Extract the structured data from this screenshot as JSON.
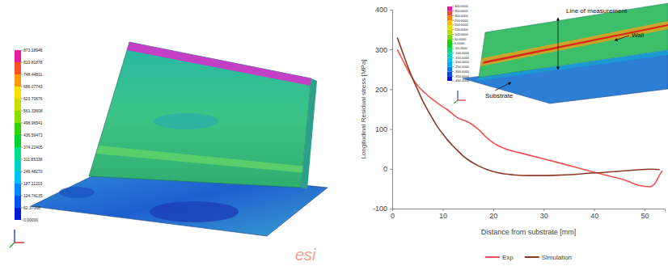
{
  "chart_data": {
    "type": "line",
    "x_label": "Distance from substrate [mm]",
    "y_label": "Longitudinal Residual stress [MPa]",
    "xlim": [
      0,
      54
    ],
    "ylim": [
      -100,
      400
    ],
    "xticks": [
      0,
      10,
      20,
      30,
      40,
      50
    ],
    "yticks": [
      -100,
      0,
      100,
      200,
      300,
      400
    ],
    "grid": false,
    "legend": "bottom",
    "series": [
      {
        "name": "Exp",
        "color": "#f0524f",
        "x": [
          1,
          2,
          3,
          4,
          5,
          7,
          9,
          11,
          13,
          15,
          17,
          19,
          21,
          23,
          26,
          30,
          34,
          38,
          42,
          46,
          49,
          51,
          52,
          53,
          53.5
        ],
        "values": [
          300,
          275,
          250,
          228,
          210,
          185,
          165,
          148,
          128,
          118,
          100,
          75,
          58,
          48,
          38,
          25,
          12,
          -2,
          -15,
          -28,
          -42,
          -45,
          -38,
          -15,
          -5
        ]
      },
      {
        "name": "Simulation",
        "color": "#8b3a26",
        "x": [
          1,
          2,
          3,
          4,
          5,
          6,
          7,
          8,
          9,
          10,
          11,
          12,
          13,
          14,
          15,
          17,
          19,
          21,
          24,
          27,
          30,
          33,
          36,
          39,
          42,
          45,
          48,
          51,
          53
        ],
        "values": [
          330,
          295,
          260,
          228,
          200,
          172,
          148,
          126,
          105,
          88,
          72,
          58,
          45,
          33,
          23,
          8,
          -3,
          -10,
          -15,
          -17,
          -17,
          -16,
          -14,
          -11,
          -9,
          -6,
          -3,
          -1,
          -2
        ]
      }
    ]
  },
  "figure": {
    "left_panel": {
      "colorbar": {
        "range": [
          0,
          873.18946
        ],
        "ticks": [
          {
            "value": 873.18946,
            "label": "873.18946"
          },
          {
            "value": 810.81878,
            "label": "810.81878"
          },
          {
            "value": 748.44811,
            "label": "748.44811"
          },
          {
            "value": 686.07743,
            "label": "686.07743"
          },
          {
            "value": 623.70676,
            "label": "623.70676"
          },
          {
            "value": 561.33608,
            "label": "561.33608"
          },
          {
            "value": 498.96541,
            "label": "498.96541"
          },
          {
            "value": 436.59473,
            "label": "436.59473"
          },
          {
            "value": 374.22405,
            "label": "374.22405"
          },
          {
            "value": 311.85338,
            "label": "311.85338"
          },
          {
            "value": 249.4827,
            "label": "249.48270"
          },
          {
            "value": 187.11203,
            "label": "187.11203"
          },
          {
            "value": 124.74135,
            "label": "124.74135"
          },
          {
            "value": 62.37068,
            "label": "62.37068"
          },
          {
            "value": 0,
            "label": "0.00000"
          }
        ]
      },
      "logo": "esi"
    },
    "inset": {
      "colorbar": {
        "range": [
          -400,
          400
        ],
        "ticks": [
          {
            "value": 400,
            "label": "400.0000"
          },
          {
            "value": 350,
            "label": "350.0000"
          },
          {
            "value": 300,
            "label": "300.0000"
          },
          {
            "value": 250,
            "label": "250.0000"
          },
          {
            "value": 200,
            "label": "200.0000"
          },
          {
            "value": 150,
            "label": "150.0000"
          },
          {
            "value": 100,
            "label": "100.0000"
          },
          {
            "value": 50,
            "label": "50.0000"
          },
          {
            "value": 0,
            "label": "0.0000"
          },
          {
            "value": -50,
            "label": "-50.0000"
          },
          {
            "value": -100,
            "label": "-100.0000"
          },
          {
            "value": -150,
            "label": "-150.0000"
          },
          {
            "value": -200,
            "label": "-200.0000"
          },
          {
            "value": -250,
            "label": "-250.0000"
          },
          {
            "value": -300,
            "label": "-300.0000"
          },
          {
            "value": -350,
            "label": "-350.0000"
          },
          {
            "value": -400,
            "label": "-400.0000"
          }
        ]
      },
      "annotations": [
        "Line of measurement",
        "Wall",
        "Substrate"
      ]
    }
  }
}
